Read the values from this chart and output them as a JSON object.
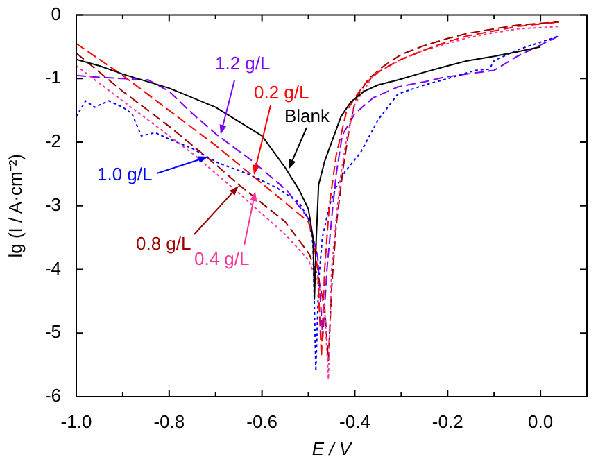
{
  "chart_data": {
    "type": "line",
    "xlabel": "E / V",
    "ylabel": "lg (I / A·cm⁻²)",
    "xlim": [
      -1.0,
      0.1
    ],
    "xticks": [
      {
        "value": -1.0,
        "label": "-1.0"
      },
      {
        "value": -0.9,
        "label": null
      },
      -0.8,
      {
        "value": -0.7,
        "label": null
      },
      -0.6,
      {
        "value": -0.5,
        "label": null
      },
      -0.4,
      {
        "value": -0.3,
        "label": null
      },
      -0.2,
      {
        "value": -0.1,
        "label": null
      },
      {
        "value": 0.0,
        "label": "0.0"
      }
    ],
    "ylim": [
      -6,
      0
    ],
    "yticks": [
      -6,
      -5,
      -4,
      -3,
      -2,
      -1,
      0
    ],
    "series": [
      {
        "name": "Blank",
        "color": "#000000",
        "line_style": "solid",
        "x": [
          -1.0,
          -0.95,
          -0.9,
          -0.8,
          -0.7,
          -0.6,
          -0.55,
          -0.52,
          -0.5,
          -0.49,
          -0.487,
          -0.483,
          -0.478,
          -0.465,
          -0.448,
          -0.43,
          -0.409,
          -0.38,
          -0.35,
          -0.307,
          -0.25,
          -0.2,
          -0.158,
          -0.1,
          -0.05,
          0.0
        ],
        "values": [
          -0.7,
          -0.8,
          -0.93,
          -1.15,
          -1.45,
          -1.9,
          -2.4,
          -2.75,
          -3.05,
          -3.5,
          -4.46,
          -3.5,
          -2.67,
          -2.3,
          -1.96,
          -1.6,
          -1.37,
          -1.2,
          -1.1,
          -1.02,
          -0.9,
          -0.8,
          -0.72,
          -0.65,
          -0.58,
          -0.5
        ]
      },
      {
        "name": "0.2 g/L",
        "color": "#ff0000",
        "line_style": "dashed",
        "x": [
          -1.0,
          -0.9,
          -0.8,
          -0.7,
          -0.618,
          -0.55,
          -0.5,
          -0.49,
          -0.48,
          -0.472,
          -0.465,
          -0.455,
          -0.44,
          -0.418,
          -0.4,
          -0.379,
          -0.35,
          -0.307,
          -0.25,
          -0.2,
          -0.158,
          -0.1,
          -0.05,
          0.04
        ],
        "values": [
          -0.45,
          -0.95,
          -1.5,
          -2.05,
          -2.54,
          -2.95,
          -3.25,
          -3.5,
          -4.0,
          -5.37,
          -4.0,
          -3.0,
          -2.2,
          -1.52,
          -1.3,
          -1.09,
          -0.9,
          -0.72,
          -0.55,
          -0.42,
          -0.33,
          -0.25,
          -0.18,
          -0.11
        ]
      },
      {
        "name": "0.4 g/L",
        "color": "#ff3399",
        "line_style": "dotted",
        "x": [
          -1.0,
          -0.9,
          -0.8,
          -0.746,
          -0.65,
          -0.55,
          -0.5,
          -0.48,
          -0.465,
          -0.457,
          -0.45,
          -0.44,
          -0.43,
          -0.418,
          -0.4,
          -0.358,
          -0.3,
          -0.25,
          -0.2,
          -0.158,
          -0.1,
          -0.05,
          0.04
        ],
        "values": [
          -0.8,
          -1.35,
          -1.9,
          -2.2,
          -2.8,
          -3.45,
          -3.85,
          -4.2,
          -4.6,
          -5.72,
          -4.0,
          -3.2,
          -2.5,
          -1.96,
          -1.4,
          -0.93,
          -0.7,
          -0.55,
          -0.45,
          -0.36,
          -0.28,
          -0.22,
          -0.18
        ]
      },
      {
        "name": "0.8 g/L",
        "color": "#990000",
        "line_style": "dashed",
        "x": [
          -1.0,
          -0.9,
          -0.8,
          -0.7,
          -0.648,
          -0.55,
          -0.498,
          -0.48,
          -0.465,
          -0.457,
          -0.45,
          -0.44,
          -0.425,
          -0.41,
          -0.397,
          -0.37,
          -0.337,
          -0.3,
          -0.25,
          -0.2,
          -0.158,
          -0.1,
          -0.05,
          0.04
        ],
        "values": [
          -0.6,
          -1.2,
          -1.75,
          -2.35,
          -2.68,
          -3.25,
          -3.76,
          -4.1,
          -4.6,
          -5.43,
          -4.3,
          -3.3,
          -2.4,
          -1.7,
          -1.3,
          -1.0,
          -0.8,
          -0.62,
          -0.48,
          -0.37,
          -0.29,
          -0.22,
          -0.16,
          -0.11
        ]
      },
      {
        "name": "1.0 g/L",
        "color": "#0000ff",
        "line_style": "dotted",
        "x": [
          -1.0,
          -0.98,
          -0.96,
          -0.93,
          -0.9,
          -0.88,
          -0.86,
          -0.83,
          -0.8,
          -0.75,
          -0.696,
          -0.63,
          -0.567,
          -0.52,
          -0.5,
          -0.49,
          -0.484,
          -0.478,
          -0.47,
          -0.455,
          -0.44,
          -0.42,
          -0.388,
          -0.35,
          -0.307,
          -0.25,
          -0.2,
          -0.14,
          -0.11,
          -0.1,
          -0.05,
          0.04
        ],
        "values": [
          -1.6,
          -1.35,
          -1.45,
          -1.35,
          -1.45,
          -1.55,
          -1.9,
          -1.85,
          -1.95,
          -2.1,
          -2.32,
          -2.5,
          -2.72,
          -2.95,
          -3.2,
          -3.6,
          -5.6,
          -4.2,
          -3.5,
          -3.0,
          -2.7,
          -2.45,
          -2.17,
          -1.65,
          -1.24,
          -1.1,
          -1.0,
          -0.87,
          -0.85,
          -0.72,
          -0.55,
          -0.33
        ]
      },
      {
        "name": "1.2 g/L",
        "color": "#8000ff",
        "line_style": "dashed",
        "x": [
          -1.0,
          -0.95,
          -0.9,
          -0.845,
          -0.8,
          -0.75,
          -0.696,
          -0.62,
          -0.546,
          -0.5,
          -0.48,
          -0.469,
          -0.46,
          -0.45,
          -0.44,
          -0.427,
          -0.4,
          -0.36,
          -0.307,
          -0.25,
          -0.209,
          -0.15,
          -0.1,
          -0.05,
          0.04
        ],
        "values": [
          -0.95,
          -0.98,
          -1.0,
          -1.02,
          -1.2,
          -1.55,
          -1.89,
          -2.3,
          -2.76,
          -3.2,
          -3.8,
          -5.07,
          -4.0,
          -3.2,
          -2.5,
          -1.89,
          -1.55,
          -1.3,
          -1.13,
          -1.05,
          -0.98,
          -0.92,
          -0.87,
          -0.65,
          -0.33
        ]
      }
    ]
  }
}
